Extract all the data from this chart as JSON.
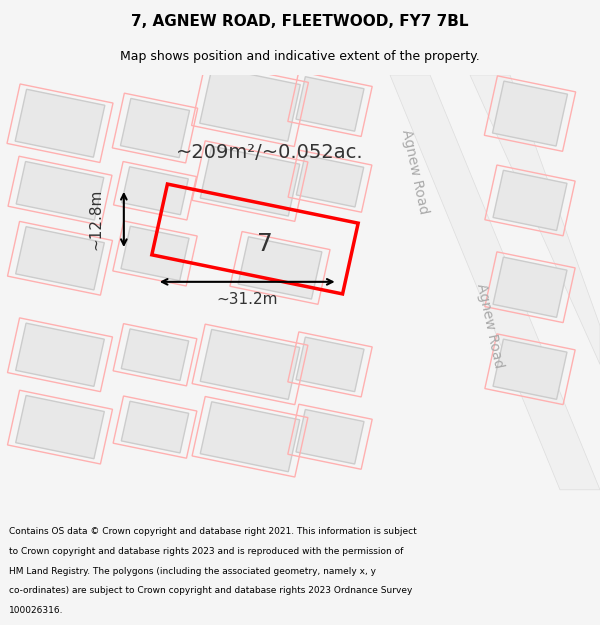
{
  "title_line1": "7, AGNEW ROAD, FLEETWOOD, FY7 7BL",
  "title_line2": "Map shows position and indicative extent of the property.",
  "footer_lines": [
    "Contains OS data © Crown copyright and database right 2021. This information is subject",
    "to Crown copyright and database rights 2023 and is reproduced with the permission of",
    "HM Land Registry. The polygons (including the associated geometry, namely x, y",
    "co-ordinates) are subject to Crown copyright and database rights 2023 Ordnance Survey",
    "100026316."
  ],
  "background_color": "#f5f5f5",
  "map_bg": "#ffffff",
  "road_label_1": "Agnew Road",
  "road_label_2": "Agnew Road",
  "property_number": "7",
  "area_label": "~209m²/~0.052ac.",
  "width_label": "~31.2m",
  "height_label": "~12.8m",
  "property_color": "#ff0000",
  "building_fill": "#e8e8e8",
  "building_outline": "#cccccc",
  "plot_outline": "#ffb0b0",
  "tilt_deg": -12
}
